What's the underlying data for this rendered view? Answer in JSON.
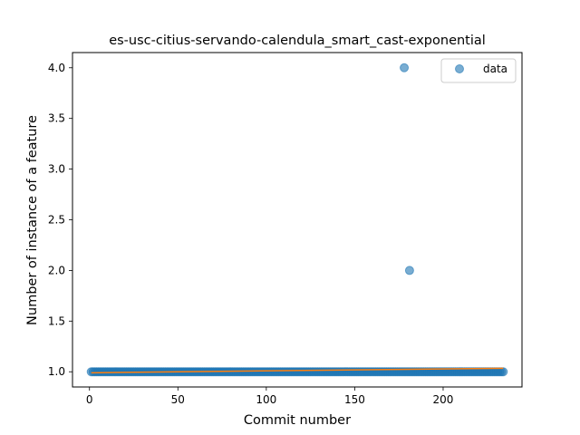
{
  "chart_data": {
    "type": "scatter",
    "title": "es-usc-citius-servando-calendula_smart_cast-exponential",
    "xlabel": "Commit number",
    "ylabel": "Number of instance of a feature",
    "xlim": [
      -9.6,
      244.6
    ],
    "ylim": [
      0.85,
      4.15
    ],
    "xticks": [
      0,
      50,
      100,
      150,
      200
    ],
    "xtick_labels": [
      "0",
      "50",
      "100",
      "150",
      "200"
    ],
    "yticks": [
      1.0,
      1.5,
      2.0,
      2.5,
      3.0,
      3.5,
      4.0
    ],
    "ytick_labels": [
      "1.0",
      "1.5",
      "2.0",
      "2.5",
      "3.0",
      "3.5",
      "4.0"
    ],
    "grid": false,
    "legend": {
      "placement": "top-right",
      "entries": [
        "data"
      ]
    },
    "series": [
      {
        "name": "data",
        "kind": "scatter",
        "color": "#1f77b4",
        "baseline": {
          "x_start": 1,
          "x_end": 234,
          "y": 1.0
        },
        "outliers": [
          {
            "x": 178,
            "y": 4.0
          },
          {
            "x": 181,
            "y": 2.0
          }
        ]
      },
      {
        "kind": "line",
        "color": "#ff7f0e",
        "x": [
          1,
          234
        ],
        "y": [
          0.99,
          1.035
        ]
      }
    ]
  }
}
